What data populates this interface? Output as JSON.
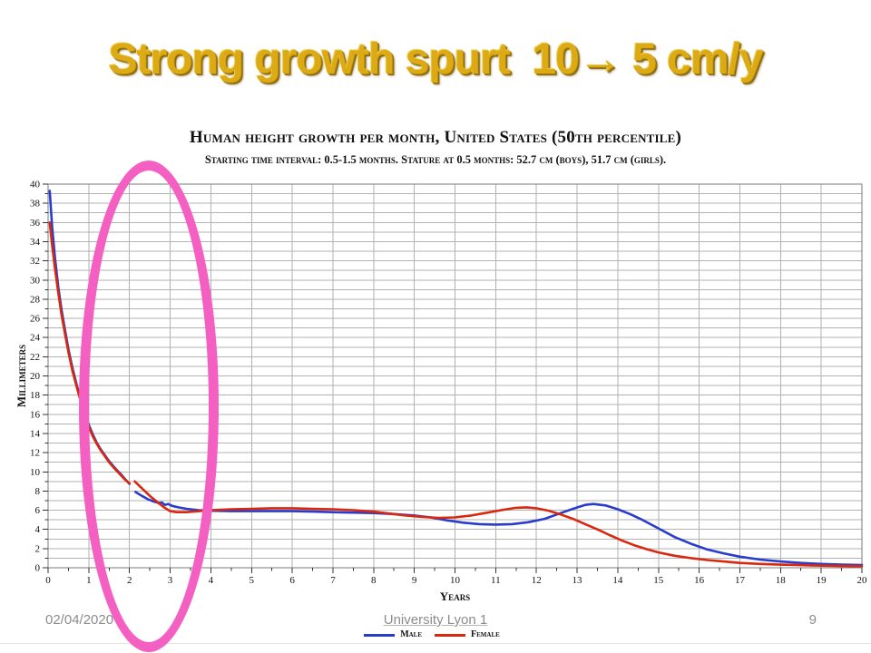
{
  "slide": {
    "title": "Strong growth spurt  10→ 5 cm/y",
    "title_color": "#dcaa14",
    "footer": {
      "date": "02/04/2020",
      "institution": "University Lyon 1",
      "page_number": "9"
    }
  },
  "annotation": {
    "shape": "ellipse",
    "color": "#f45fc2"
  },
  "chart_data": {
    "type": "line",
    "title": "Human height growth per month, United States (50th percentile)",
    "subtitle": "Starting time interval: 0.5-1.5 months. Stature at 0.5 months: 52.7 cm (boys), 51.7 cm (girls).",
    "xlabel": "Years",
    "ylabel": "Millimeters",
    "xlim": [
      0,
      20
    ],
    "ylim": [
      0,
      40
    ],
    "x_major_tick": 1,
    "x_minor_tick": 0.5,
    "y_major_tick": 2,
    "y_minor_tick": 1,
    "grid": true,
    "grid_color": "#b2b2b2",
    "legend_position": "bottom-center",
    "legend": [
      {
        "label": "Male",
        "color": "#2a3ccb"
      },
      {
        "label": "Female",
        "color": "#d8280f"
      }
    ],
    "series": [
      {
        "name": "Male",
        "color": "#2a3ccb",
        "segments": [
          [
            [
              0.04,
              39.3
            ],
            [
              0.1,
              35.5
            ],
            [
              0.17,
              32.3
            ],
            [
              0.25,
              29.3
            ],
            [
              0.33,
              26.9
            ],
            [
              0.42,
              24.7
            ],
            [
              0.5,
              22.8
            ],
            [
              0.6,
              20.8
            ],
            [
              0.7,
              19.1
            ],
            [
              0.8,
              17.6
            ],
            [
              0.9,
              16.2
            ],
            [
              1.0,
              14.9
            ],
            [
              1.1,
              13.9
            ],
            [
              1.2,
              13.0
            ],
            [
              1.3,
              12.3
            ],
            [
              1.4,
              11.7
            ],
            [
              1.5,
              11.1
            ],
            [
              1.6,
              10.6
            ],
            [
              1.7,
              10.15
            ],
            [
              1.8,
              9.7
            ],
            [
              1.9,
              9.2
            ],
            [
              2.0,
              8.75
            ]
          ],
          [
            [
              2.15,
              7.9
            ],
            [
              2.3,
              7.5
            ],
            [
              2.45,
              7.15
            ],
            [
              2.6,
              6.9
            ],
            [
              2.72,
              6.75
            ],
            [
              2.8,
              6.8
            ],
            [
              2.87,
              6.55
            ],
            [
              2.95,
              6.65
            ],
            [
              3.05,
              6.45
            ],
            [
              3.2,
              6.3
            ],
            [
              3.4,
              6.15
            ],
            [
              3.7,
              6.0
            ],
            [
              4.0,
              5.95
            ],
            [
              4.5,
              5.9
            ],
            [
              5.0,
              5.9
            ],
            [
              5.5,
              5.9
            ],
            [
              6.0,
              5.9
            ],
            [
              6.5,
              5.85
            ],
            [
              7.0,
              5.8
            ],
            [
              7.5,
              5.75
            ],
            [
              8.0,
              5.7
            ],
            [
              8.5,
              5.6
            ],
            [
              9.0,
              5.45
            ],
            [
              9.4,
              5.25
            ],
            [
              9.8,
              4.95
            ],
            [
              10.2,
              4.7
            ],
            [
              10.6,
              4.55
            ],
            [
              11.0,
              4.5
            ],
            [
              11.4,
              4.55
            ],
            [
              11.8,
              4.75
            ],
            [
              12.2,
              5.1
            ],
            [
              12.6,
              5.7
            ],
            [
              12.9,
              6.15
            ],
            [
              13.2,
              6.55
            ],
            [
              13.4,
              6.65
            ],
            [
              13.7,
              6.5
            ],
            [
              14.0,
              6.1
            ],
            [
              14.3,
              5.6
            ],
            [
              14.6,
              5.0
            ],
            [
              15.0,
              4.1
            ],
            [
              15.4,
              3.2
            ],
            [
              15.8,
              2.5
            ],
            [
              16.2,
              1.9
            ],
            [
              16.6,
              1.5
            ],
            [
              17.0,
              1.15
            ],
            [
              17.5,
              0.85
            ],
            [
              18.0,
              0.65
            ],
            [
              18.5,
              0.5
            ],
            [
              19.0,
              0.4
            ],
            [
              19.5,
              0.33
            ],
            [
              20.0,
              0.28
            ]
          ]
        ]
      },
      {
        "name": "Female",
        "color": "#d8280f",
        "segments": [
          [
            [
              0.04,
              36.0
            ],
            [
              0.1,
              33.6
            ],
            [
              0.17,
              31.2
            ],
            [
              0.25,
              28.7
            ],
            [
              0.33,
              26.4
            ],
            [
              0.42,
              24.3
            ],
            [
              0.5,
              22.5
            ],
            [
              0.6,
              20.5
            ],
            [
              0.7,
              18.9
            ],
            [
              0.8,
              17.4
            ],
            [
              0.9,
              16.0
            ],
            [
              1.0,
              14.7
            ],
            [
              1.1,
              13.7
            ],
            [
              1.2,
              12.9
            ],
            [
              1.3,
              12.2
            ],
            [
              1.4,
              11.6
            ],
            [
              1.5,
              11.0
            ],
            [
              1.6,
              10.5
            ],
            [
              1.7,
              10.05
            ],
            [
              1.8,
              9.6
            ],
            [
              1.9,
              9.15
            ],
            [
              2.0,
              8.8
            ]
          ],
          [
            [
              2.13,
              9.0
            ],
            [
              2.3,
              8.3
            ],
            [
              2.5,
              7.5
            ],
            [
              2.7,
              6.8
            ],
            [
              2.85,
              6.3
            ],
            [
              3.0,
              5.9
            ],
            [
              3.15,
              5.8
            ],
            [
              3.4,
              5.8
            ],
            [
              3.7,
              5.9
            ],
            [
              4.0,
              6.0
            ],
            [
              4.5,
              6.1
            ],
            [
              5.0,
              6.15
            ],
            [
              5.5,
              6.2
            ],
            [
              6.0,
              6.2
            ],
            [
              6.5,
              6.15
            ],
            [
              7.0,
              6.1
            ],
            [
              7.5,
              6.0
            ],
            [
              8.0,
              5.85
            ],
            [
              8.4,
              5.65
            ],
            [
              8.8,
              5.45
            ],
            [
              9.2,
              5.3
            ],
            [
              9.6,
              5.2
            ],
            [
              10.0,
              5.25
            ],
            [
              10.4,
              5.45
            ],
            [
              10.8,
              5.75
            ],
            [
              11.2,
              6.05
            ],
            [
              11.5,
              6.25
            ],
            [
              11.75,
              6.3
            ],
            [
              12.0,
              6.2
            ],
            [
              12.3,
              5.95
            ],
            [
              12.6,
              5.55
            ],
            [
              12.9,
              5.1
            ],
            [
              13.2,
              4.55
            ],
            [
              13.5,
              4.0
            ],
            [
              13.8,
              3.4
            ],
            [
              14.1,
              2.85
            ],
            [
              14.4,
              2.35
            ],
            [
              14.7,
              1.95
            ],
            [
              15.0,
              1.6
            ],
            [
              15.4,
              1.25
            ],
            [
              15.8,
              1.0
            ],
            [
              16.2,
              0.8
            ],
            [
              16.6,
              0.65
            ],
            [
              17.0,
              0.5
            ],
            [
              17.5,
              0.4
            ],
            [
              18.0,
              0.32
            ],
            [
              18.5,
              0.27
            ],
            [
              19.0,
              0.22
            ],
            [
              19.5,
              0.18
            ],
            [
              20.0,
              0.16
            ]
          ]
        ]
      }
    ]
  }
}
